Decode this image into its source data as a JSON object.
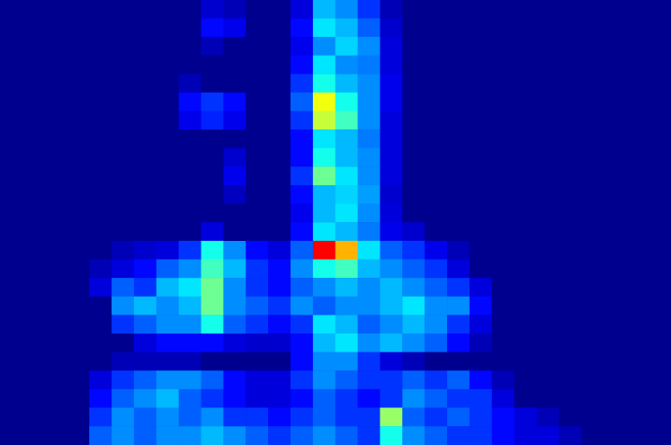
{
  "chart_data": {
    "type": "heatmap",
    "tick_labels": false,
    "grid": false,
    "zlim": [
      0,
      1
    ],
    "cells": [
      [
        0,
        0,
        0,
        0,
        0,
        0,
        0,
        0,
        0,
        0.08,
        0.05,
        0,
        0,
        0.1,
        0.35,
        0.3,
        0.2,
        0.05,
        0,
        0,
        0,
        0,
        0,
        0,
        0,
        0,
        0,
        0,
        0,
        0
      ],
      [
        0,
        0,
        0,
        0,
        0,
        0,
        0,
        0,
        0,
        0.15,
        0.12,
        0,
        0,
        0.15,
        0.4,
        0.35,
        0.25,
        0.08,
        0,
        0,
        0,
        0,
        0,
        0,
        0,
        0,
        0,
        0,
        0,
        0
      ],
      [
        0,
        0,
        0,
        0,
        0,
        0,
        0,
        0,
        0,
        0.05,
        0,
        0,
        0,
        0.12,
        0.3,
        0.38,
        0.3,
        0.1,
        0,
        0,
        0,
        0,
        0,
        0,
        0,
        0,
        0,
        0,
        0,
        0
      ],
      [
        0,
        0,
        0,
        0,
        0,
        0,
        0,
        0,
        0,
        0,
        0,
        0,
        0,
        0.15,
        0.4,
        0.3,
        0.28,
        0.1,
        0,
        0,
        0,
        0,
        0,
        0,
        0,
        0,
        0,
        0,
        0,
        0
      ],
      [
        0,
        0,
        0,
        0,
        0,
        0,
        0,
        0,
        0.05,
        0,
        0,
        0,
        0,
        0.2,
        0.45,
        0.35,
        0.3,
        0.12,
        0,
        0,
        0,
        0,
        0,
        0,
        0,
        0,
        0,
        0,
        0,
        0
      ],
      [
        0,
        0,
        0,
        0,
        0,
        0,
        0,
        0,
        0.15,
        0.2,
        0.15,
        0,
        0,
        0.25,
        0.7,
        0.45,
        0.3,
        0.12,
        0,
        0,
        0,
        0,
        0,
        0,
        0,
        0,
        0,
        0,
        0,
        0
      ],
      [
        0,
        0,
        0,
        0,
        0,
        0,
        0,
        0,
        0.12,
        0.18,
        0.12,
        0,
        0,
        0.2,
        0.65,
        0.5,
        0.3,
        0.1,
        0,
        0,
        0,
        0,
        0,
        0,
        0,
        0,
        0,
        0,
        0,
        0
      ],
      [
        0,
        0,
        0,
        0,
        0,
        0,
        0,
        0,
        0,
        0,
        0,
        0,
        0,
        0.15,
        0.4,
        0.35,
        0.28,
        0.1,
        0,
        0,
        0,
        0,
        0,
        0,
        0,
        0,
        0,
        0,
        0,
        0
      ],
      [
        0,
        0,
        0,
        0,
        0,
        0,
        0,
        0,
        0,
        0,
        0.08,
        0,
        0,
        0.15,
        0.45,
        0.35,
        0.3,
        0.1,
        0,
        0,
        0,
        0,
        0,
        0,
        0,
        0,
        0,
        0,
        0,
        0
      ],
      [
        0,
        0,
        0,
        0,
        0,
        0,
        0,
        0,
        0,
        0,
        0.12,
        0,
        0,
        0.2,
        0.55,
        0.4,
        0.3,
        0.1,
        0,
        0,
        0,
        0,
        0,
        0,
        0,
        0,
        0,
        0,
        0,
        0
      ],
      [
        0,
        0,
        0,
        0,
        0,
        0,
        0,
        0,
        0,
        0,
        0.06,
        0,
        0,
        0.15,
        0.35,
        0.38,
        0.32,
        0.08,
        0,
        0,
        0,
        0,
        0,
        0,
        0,
        0,
        0,
        0,
        0,
        0
      ],
      [
        0,
        0,
        0,
        0,
        0,
        0,
        0,
        0,
        0,
        0,
        0,
        0,
        0,
        0.12,
        0.35,
        0.4,
        0.3,
        0.1,
        0,
        0,
        0,
        0,
        0,
        0,
        0,
        0,
        0,
        0,
        0,
        0
      ],
      [
        0,
        0,
        0,
        0,
        0,
        0,
        0,
        0,
        0,
        0.1,
        0,
        0,
        0,
        0.15,
        0.4,
        0.35,
        0.28,
        0.12,
        0.08,
        0,
        0,
        0,
        0,
        0,
        0,
        0,
        0,
        0,
        0,
        0
      ],
      [
        0,
        0,
        0,
        0,
        0,
        0.05,
        0.08,
        0.1,
        0.2,
        0.45,
        0.3,
        0.15,
        0.1,
        0.25,
        1,
        0.8,
        0.4,
        0.25,
        0.2,
        0.12,
        0.05,
        0,
        0,
        0,
        0,
        0,
        0,
        0,
        0,
        0
      ],
      [
        0,
        0,
        0,
        0,
        0.05,
        0.1,
        0.15,
        0.25,
        0.3,
        0.5,
        0.35,
        0.2,
        0.15,
        0.3,
        0.45,
        0.5,
        0.35,
        0.3,
        0.25,
        0.2,
        0.1,
        0,
        0,
        0,
        0,
        0,
        0,
        0,
        0,
        0
      ],
      [
        0,
        0,
        0,
        0,
        0.1,
        0.25,
        0.2,
        0.35,
        0.4,
        0.55,
        0.3,
        0.2,
        0.15,
        0.25,
        0.3,
        0.35,
        0.3,
        0.35,
        0.3,
        0.25,
        0.2,
        0.1,
        0,
        0,
        0,
        0,
        0,
        0,
        0,
        0
      ],
      [
        0,
        0,
        0,
        0,
        0,
        0.3,
        0.35,
        0.3,
        0.35,
        0.55,
        0.3,
        0.25,
        0.2,
        0.3,
        0.25,
        0.3,
        0.3,
        0.35,
        0.4,
        0.3,
        0.3,
        0.15,
        0,
        0,
        0,
        0,
        0,
        0,
        0,
        0
      ],
      [
        0,
        0,
        0,
        0,
        0,
        0.2,
        0.25,
        0.3,
        0.3,
        0.45,
        0.25,
        0.2,
        0.15,
        0.2,
        0.4,
        0.35,
        0.25,
        0.3,
        0.35,
        0.3,
        0.2,
        0.1,
        0,
        0,
        0,
        0,
        0,
        0,
        0,
        0
      ],
      [
        0,
        0,
        0,
        0,
        0,
        0,
        0.1,
        0.15,
        0.15,
        0.15,
        0.1,
        0.08,
        0.08,
        0.15,
        0.35,
        0.4,
        0.3,
        0.35,
        0.3,
        0.25,
        0.15,
        0.05,
        0,
        0,
        0,
        0,
        0,
        0,
        0,
        0
      ],
      [
        0,
        0,
        0,
        0,
        0,
        0.05,
        0.05,
        0.05,
        0.05,
        0,
        0,
        0,
        0,
        0.15,
        0.3,
        0.3,
        0.2,
        0.1,
        0.05,
        0,
        0,
        0,
        0,
        0,
        0,
        0,
        0,
        0,
        0,
        0
      ],
      [
        0,
        0,
        0,
        0,
        0.1,
        0.2,
        0.25,
        0.3,
        0.3,
        0.25,
        0.15,
        0.1,
        0.1,
        0.2,
        0.3,
        0.25,
        0.2,
        0.2,
        0.25,
        0.2,
        0.25,
        0.15,
        0.05,
        0,
        0,
        0,
        0,
        0,
        0,
        0
      ],
      [
        0,
        0,
        0,
        0,
        0.15,
        0.25,
        0.3,
        0.35,
        0.25,
        0.2,
        0.15,
        0.1,
        0.1,
        0.15,
        0.25,
        0.2,
        0.15,
        0.2,
        0.3,
        0.25,
        0.2,
        0.2,
        0.1,
        0,
        0,
        0,
        0,
        0,
        0,
        0
      ],
      [
        0,
        0,
        0,
        0,
        0.2,
        0.3,
        0.25,
        0.3,
        0.25,
        0.3,
        0.2,
        0.2,
        0.15,
        0.2,
        0.25,
        0.2,
        0.2,
        0.6,
        0.25,
        0.2,
        0.25,
        0.2,
        0.15,
        0.1,
        0.05,
        0,
        0,
        0,
        0,
        0
      ],
      [
        0,
        0,
        0,
        0,
        0.25,
        0.3,
        0.25,
        0.3,
        0.3,
        0.35,
        0.3,
        0.25,
        0.2,
        0.25,
        0.3,
        0.25,
        0.2,
        0.45,
        0.3,
        0.25,
        0.2,
        0.2,
        0.15,
        0.1,
        0.1,
        0.05,
        0,
        0,
        0,
        0
      ]
    ]
  }
}
